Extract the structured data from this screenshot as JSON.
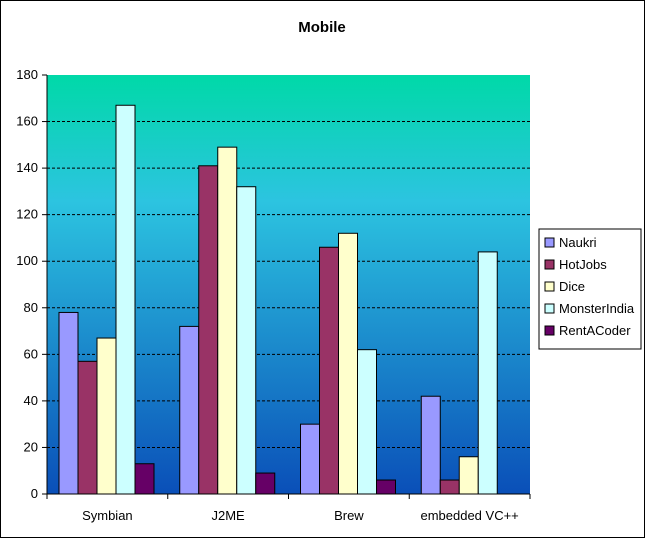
{
  "chart_data": {
    "type": "bar",
    "title": "Mobile",
    "xlabel": "",
    "ylabel": "",
    "categories": [
      "Symbian",
      "J2ME",
      "Brew",
      "embedded VC++"
    ],
    "series": [
      {
        "name": "Naukri",
        "color": "#9999ff",
        "values": [
          78,
          72,
          30,
          42
        ]
      },
      {
        "name": "HotJobs",
        "color": "#993366",
        "values": [
          57,
          141,
          106,
          6
        ]
      },
      {
        "name": "Dice",
        "color": "#ffffcc",
        "values": [
          67,
          149,
          112,
          16
        ]
      },
      {
        "name": "MonsterIndia",
        "color": "#ccffff",
        "values": [
          167,
          132,
          62,
          104
        ]
      },
      {
        "name": "RentACoder",
        "color": "#660066",
        "values": [
          13,
          9,
          6,
          0
        ]
      }
    ],
    "ylim": [
      0,
      180
    ],
    "yticks": [
      0,
      20,
      40,
      60,
      80,
      100,
      120,
      140,
      160,
      180
    ],
    "grid": true,
    "legend_position": "right",
    "plot_gradient": [
      "#00d9a8",
      "#2cc4e0",
      "#0a4fb8"
    ]
  }
}
